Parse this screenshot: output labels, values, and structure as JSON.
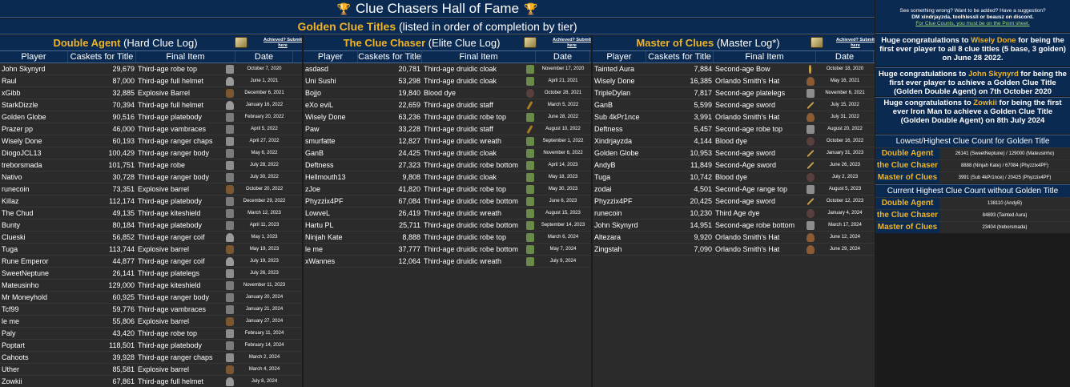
{
  "header": {
    "title": "Clue Chasers Hall of Fame",
    "subtitle_gold": "Golden Clue Titles",
    "subtitle_rest": " (listed in order of completion by tier)"
  },
  "columns": {
    "player": "Player",
    "caskets": "Caskets for Title",
    "item": "Final Item",
    "date": "Date"
  },
  "ach_link": "Achieved? Submit here",
  "panels": [
    {
      "gold": "Double Agent",
      "rest": " (Hard Clue Log)",
      "rows": [
        [
          "John Skynyrd",
          "29,679",
          "Third-age robe top",
          "October 7, 2020",
          "robe"
        ],
        [
          "Raul",
          "87,000",
          "Third-age full helmet",
          "June 1, 2021",
          "helm"
        ],
        [
          "xGibb",
          "32,885",
          "Explosive Barrel",
          "December 6, 2021",
          "barrel"
        ],
        [
          "StarkDizzle",
          "70,394",
          "Third-age full helmet",
          "January 16, 2022",
          "helm"
        ],
        [
          "Golden Globe",
          "90,516",
          "Third-age platebody",
          "February 20, 2022",
          "plate"
        ],
        [
          "Prazer pp",
          "46,000",
          "Third-age vambraces",
          "April 5, 2022",
          "plate"
        ],
        [
          "Wisely Done",
          "60,193",
          "Third-age ranger chaps",
          "April 27, 2022",
          "robe"
        ],
        [
          "DiogoJCL13",
          "100,429",
          "Third-age ranger body",
          "May 6, 2022",
          "plate"
        ],
        [
          "treborsmada",
          "101,751",
          "Third-age robe",
          "July 28, 2022",
          "robe"
        ],
        [
          "Nativo",
          "30,728",
          "Third-age ranger body",
          "July 30, 2022",
          "plate"
        ],
        [
          "runecoin",
          "73,351",
          "Explosive barrel",
          "October 20, 2022",
          "barrel"
        ],
        [
          "Killaz",
          "112,174",
          "Third-age platebody",
          "December 29, 2022",
          "plate"
        ],
        [
          "The Chud",
          "49,135",
          "Third-age kiteshield",
          "March 12, 2023",
          "plate"
        ],
        [
          "Bunty",
          "80,184",
          "Third-age platebody",
          "April 11, 2023",
          "plate"
        ],
        [
          "Clueski",
          "56,852",
          "Third-age ranger coif",
          "May 1, 2023",
          "helm"
        ],
        [
          "Tuga",
          "113,744",
          "Explosive barrel",
          "May 19, 2023",
          "barrel"
        ],
        [
          "Rune Emperor",
          "44,877",
          "Third-age ranger coif",
          "July 19, 2023",
          "helm"
        ],
        [
          "SweetNeptune",
          "26,141",
          "Third-age platelegs",
          "July 26, 2023",
          "robe"
        ],
        [
          "Mateusinho",
          "129,000",
          "Third-age kiteshield",
          "November 11, 2023",
          "plate"
        ],
        [
          "Mr Moneyhold",
          "60,925",
          "Third-age ranger body",
          "January 20, 2024",
          "plate"
        ],
        [
          "Tcf99",
          "59,776",
          "Third-age vambraces",
          "January 21, 2024",
          "plate"
        ],
        [
          "le me",
          "55,806",
          "Explosive barrel",
          "January 27, 2024",
          "barrel"
        ],
        [
          "Paly",
          "43,420",
          "Third-age robe top",
          "February 11, 2024",
          "robe"
        ],
        [
          "Poptart",
          "118,501",
          "Third-age platebody",
          "February 14, 2024",
          "plate"
        ],
        [
          "Cahoots",
          "39,928",
          "Third-age ranger chaps",
          "March 2, 2024",
          "robe"
        ],
        [
          "Uther",
          "85,581",
          "Explosive barrel",
          "March 4, 2024",
          "barrel"
        ],
        [
          "Zowkii",
          "67,861",
          "Third-age full helmet",
          "July 8, 2024",
          "helm"
        ]
      ]
    },
    {
      "gold": "The Clue Chaser",
      "rest": " (Elite Clue Log)",
      "rows": [
        [
          "asdasd",
          "20,781",
          "Third-age druidic cloak",
          "November 17, 2020",
          "green"
        ],
        [
          "Uni Sushi",
          "53,298",
          "Third-age druidic cloak",
          "April 21, 2021",
          "green"
        ],
        [
          "Bojjo",
          "19,840",
          "Blood dye",
          "October 28, 2021",
          "dye"
        ],
        [
          "eXo eviL",
          "22,659",
          "Third-age druidic staff",
          "March 5, 2022",
          "staff"
        ],
        [
          "Wisely Done",
          "63,236",
          "Third-age druidic robe top",
          "June 28, 2022",
          "green"
        ],
        [
          "Paw",
          "33,228",
          "Third-age druidic staff",
          "August 10, 2022",
          "staff"
        ],
        [
          "smurfatte",
          "12,827",
          "Third-age druidic wreath",
          "September 1, 2022",
          "green"
        ],
        [
          "GanB",
          "24,425",
          "Third-age druidic cloak",
          "November 6, 2022",
          "green"
        ],
        [
          "Deftness",
          "27,323",
          "Third-age druidic robe bottom",
          "April 14, 2023",
          "green"
        ],
        [
          "Hellmouth13",
          "9,808",
          "Third-age druidic cloak",
          "May 18, 2023",
          "green"
        ],
        [
          "zJoe",
          "41,820",
          "Third-age druidic robe top",
          "May 30, 2023",
          "green"
        ],
        [
          "Phyzzix4PF",
          "67,084",
          "Third-age druidic robe bottom",
          "June 6, 2023",
          "green"
        ],
        [
          "LowveL",
          "26,419",
          "Third-age druidic wreath",
          "August 15, 2023",
          "green"
        ],
        [
          "Hartu PL",
          "25,711",
          "Third-age druidic robe bottom",
          "September 14, 2023",
          "green"
        ],
        [
          "Ninjah Kate",
          "8,888",
          "Third-age druidic robe top",
          "March 6, 2024",
          "green"
        ],
        [
          "le me",
          "37,777",
          "Third-age druidic robe bottom",
          "May 7, 2024",
          "green"
        ],
        [
          "xWannes",
          "12,064",
          "Third-age druidic wreath",
          "July 9, 2024",
          "green"
        ]
      ]
    },
    {
      "gold": "Master of Clues",
      "rest": " (Master Log*)",
      "rows": [
        [
          "Tainted Aura",
          "7,884",
          "Second-age Bow",
          "October 18, 2020",
          "bow"
        ],
        [
          "Wisely Done",
          "16,385",
          "Orlando Smith's Hat",
          "May 16, 2021",
          "hat"
        ],
        [
          "TripleDylan",
          "7,817",
          "Second-age platelegs",
          "November 6, 2021",
          "robe"
        ],
        [
          "GanB",
          "5,599",
          "Second-age sword",
          "July 15, 2022",
          "sword"
        ],
        [
          "Sub 4kPr1nce",
          "3,991",
          "Orlando Smith's Hat",
          "July 31, 2022",
          "hat"
        ],
        [
          "Deftness",
          "5,457",
          "Second-age robe top",
          "August 20, 2022",
          "robe"
        ],
        [
          "Xindrjayzda",
          "4,144",
          "Blood dye",
          "October 16, 2022",
          "dye"
        ],
        [
          "Golden Globe",
          "10,953",
          "Second-age sword",
          "January 31, 2023",
          "sword"
        ],
        [
          "AndyB",
          "11,849",
          "Second-Age sword",
          "June 26, 2023",
          "sword"
        ],
        [
          "Tuga",
          "10,742",
          "Blood dye",
          "July 2, 2023",
          "dye"
        ],
        [
          "zodai",
          "4,501",
          "Second-Age range top",
          "August 5, 2023",
          "robe"
        ],
        [
          "Phyzzix4PF",
          "20,425",
          "Second-age sword",
          "October 12, 2023",
          "sword"
        ],
        [
          "runecoin",
          "10,230",
          "Third Age dye",
          "January 4, 2024",
          "dye"
        ],
        [
          "John Skynyrd",
          "14,951",
          "Second-age robe bottom",
          "March 17, 2024",
          "robe"
        ],
        [
          "Altezara",
          "9,920",
          "Orlando Smith's Hat",
          "June 12, 2024",
          "hat"
        ],
        [
          "Zingstah",
          "7,090",
          "Orlando Smith's Hat",
          "June 29, 2024",
          "hat"
        ]
      ]
    }
  ],
  "sidebar": {
    "note_line1": "See something wrong? Want to be added? Have a suggestion?",
    "note_line2": "DM xindrjayzda, toolhlessli or beausz on discord.",
    "note_link": "For Clue Counts, you must be on the Point sheet.",
    "c1_pre": "Huge congratulations to ",
    "c1_name": "Wisely Done",
    "c1_post": " for being the first ever player to all 8 clue titles (5 base, 3 golden) on June 28 2022.",
    "c2_pre": "Huge congratulations to ",
    "c2_name": "John Skynyrd",
    "c2_post": " for being the first ever player to achieve a Golden Clue Title (Golden Double Agent) on 7th October 2020",
    "c3_pre": "Huge congratulations to ",
    "c3_name": "Zowkii",
    "c3_post": " for being the first ever Iron Man to achieve a Golden Clue Title (Golden Double Agent) on 8th July 2024",
    "lowhigh_title": "Lowest/Highest Clue Count for Golden Title",
    "lowhigh": [
      {
        "label": "Double Agent",
        "value": "26141 (SweetNeptune) / 129000 (Mateusinho)"
      },
      {
        "label": "the Clue Chaser",
        "value": "8888 (Ninjah Kate) / 67084 (Phyzzix4PF)"
      },
      {
        "label": "Master of Clues",
        "value": "3991 (Sub 4kPr1nce) / 20425 (Phyzzix4PF)"
      }
    ],
    "highest_title": "Current Highest Clue Count without Golden Title",
    "highest": [
      {
        "label": "Double Agent",
        "value": "138110 (AndyB)"
      },
      {
        "label": "the Clue Chaser",
        "value": "84893 (Tainted Aura)"
      },
      {
        "label": "Master of Clues",
        "value": "23404 (treborsmada)"
      }
    ]
  }
}
